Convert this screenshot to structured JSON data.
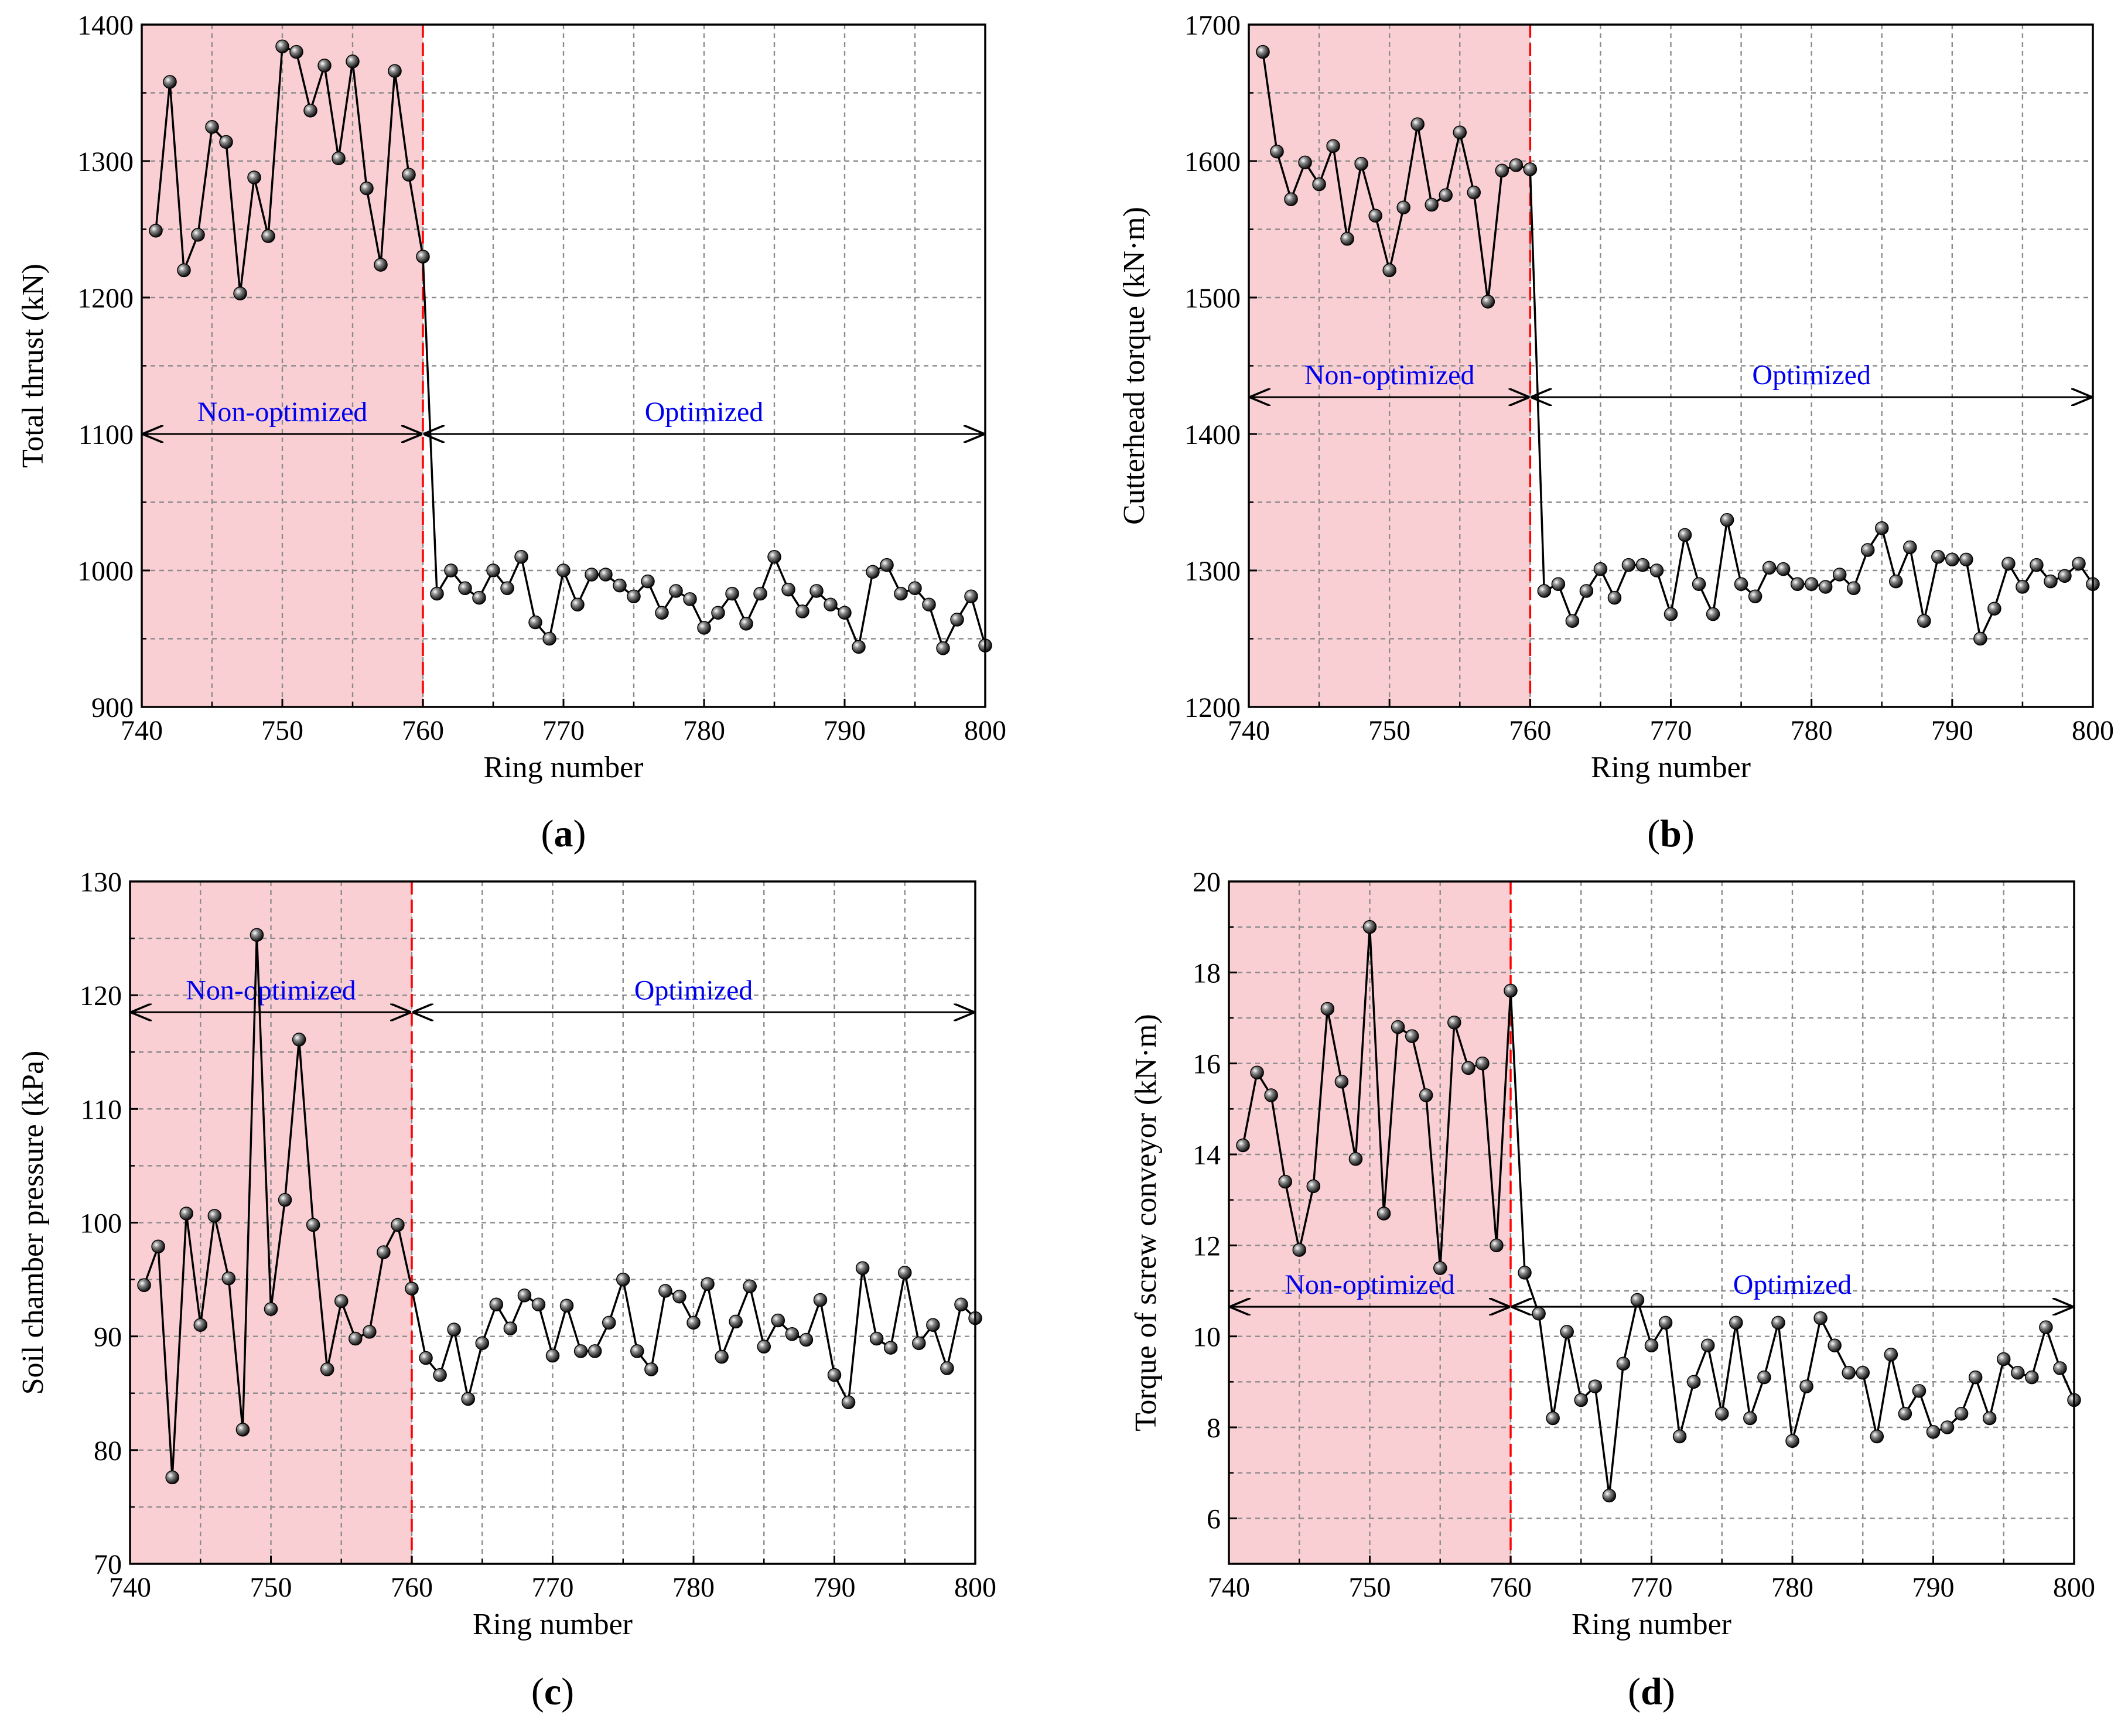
{
  "colors": {
    "shade": "#f9cfd3",
    "divider": "#ff0000",
    "annotation_text": "#0000ee",
    "series": "#000000",
    "grid": "#8c8c8c"
  },
  "chart_data": [
    {
      "type": "line",
      "caption_letter": "a",
      "title": "",
      "xlabel": "Ring number",
      "ylabel": "Total thrust (kN)",
      "xlim": [
        740,
        800
      ],
      "ylim": [
        900,
        1400
      ],
      "xticks": [
        740,
        750,
        760,
        770,
        780,
        790,
        800
      ],
      "yticks": [
        900,
        1000,
        1100,
        1200,
        1300,
        1400
      ],
      "shaded_range": [
        740,
        760
      ],
      "divider_x": 760,
      "region_labels": {
        "non_optimized": "Non-optimized",
        "optimized": "Optimized"
      },
      "annotation_y": 1100,
      "grid": true,
      "series": [
        {
          "name": "Total thrust",
          "x": [
            741,
            742,
            743,
            744,
            745,
            746,
            747,
            748,
            749,
            750,
            751,
            752,
            753,
            754,
            755,
            756,
            757,
            758,
            759,
            760,
            761,
            762,
            763,
            764,
            765,
            766,
            767,
            768,
            769,
            770,
            771,
            772,
            773,
            774,
            775,
            776,
            777,
            778,
            779,
            780,
            781,
            782,
            783,
            784,
            785,
            786,
            787,
            788,
            789,
            790,
            791,
            792,
            793,
            794,
            795,
            796,
            797,
            798,
            799,
            800
          ],
          "values": [
            1249,
            1358,
            1220,
            1246,
            1325,
            1314,
            1203,
            1288,
            1245,
            1384,
            1380,
            1337,
            1370,
            1302,
            1373,
            1280,
            1224,
            1366,
            1290,
            1230,
            983,
            1000,
            987,
            980,
            1000,
            987,
            1010,
            962,
            950,
            1000,
            975,
            997,
            997,
            989,
            981,
            992,
            969,
            985,
            979,
            958,
            969,
            983,
            961,
            983,
            1010,
            986,
            970,
            985,
            975,
            969,
            944,
            999,
            1004,
            983,
            987,
            975,
            943,
            964,
            981,
            945
          ]
        }
      ]
    },
    {
      "type": "line",
      "caption_letter": "b",
      "title": "",
      "xlabel": "Ring number",
      "ylabel": "Cutterhead torque (kN·m)",
      "xlim": [
        740,
        800
      ],
      "ylim": [
        1200,
        1700
      ],
      "xticks": [
        740,
        750,
        760,
        770,
        780,
        790,
        800
      ],
      "yticks": [
        1200,
        1300,
        1400,
        1500,
        1600,
        1700
      ],
      "shaded_range": [
        740,
        760
      ],
      "divider_x": 760,
      "region_labels": {
        "non_optimized": "Non-optimized",
        "optimized": "Optimized"
      },
      "annotation_y": 1427,
      "grid": true,
      "series": [
        {
          "name": "Cutterhead torque",
          "x": [
            741,
            742,
            743,
            744,
            745,
            746,
            747,
            748,
            749,
            750,
            751,
            752,
            753,
            754,
            755,
            756,
            757,
            758,
            759,
            760,
            761,
            762,
            763,
            764,
            765,
            766,
            767,
            768,
            769,
            770,
            771,
            772,
            773,
            774,
            775,
            776,
            777,
            778,
            779,
            780,
            781,
            782,
            783,
            784,
            785,
            786,
            787,
            788,
            789,
            790,
            791,
            792,
            793,
            794,
            795,
            796,
            797,
            798,
            799,
            800
          ],
          "values": [
            1680,
            1607,
            1572,
            1599,
            1583,
            1611,
            1543,
            1598,
            1560,
            1520,
            1566,
            1627,
            1568,
            1575,
            1621,
            1577,
            1497,
            1593,
            1597,
            1594,
            1285,
            1290,
            1263,
            1285,
            1301,
            1280,
            1304,
            1304,
            1300,
            1268,
            1326,
            1290,
            1268,
            1337,
            1290,
            1281,
            1302,
            1301,
            1290,
            1290,
            1288,
            1297,
            1287,
            1315,
            1331,
            1292,
            1317,
            1263,
            1310,
            1308,
            1308,
            1250,
            1272,
            1305,
            1288,
            1304,
            1292,
            1296,
            1305,
            1290
          ]
        }
      ]
    },
    {
      "type": "line",
      "caption_letter": "c",
      "title": "",
      "xlabel": "Ring number",
      "ylabel": "Soil chamber pressure (kPa)",
      "xlim": [
        740,
        800
      ],
      "ylim": [
        70,
        130
      ],
      "xticks": [
        740,
        750,
        760,
        770,
        780,
        790,
        800
      ],
      "yticks": [
        70,
        80,
        90,
        100,
        110,
        120,
        130
      ],
      "shaded_range": [
        740,
        760
      ],
      "divider_x": 760,
      "region_labels": {
        "non_optimized": "Non-optimized",
        "optimized": "Optimized"
      },
      "annotation_y": 118.5,
      "grid": true,
      "series": [
        {
          "name": "Soil chamber pressure",
          "x": [
            741,
            742,
            743,
            744,
            745,
            746,
            747,
            748,
            749,
            750,
            751,
            752,
            753,
            754,
            755,
            756,
            757,
            758,
            759,
            760,
            761,
            762,
            763,
            764,
            765,
            766,
            767,
            768,
            769,
            770,
            771,
            772,
            773,
            774,
            775,
            776,
            777,
            778,
            779,
            780,
            781,
            782,
            783,
            784,
            785,
            786,
            787,
            788,
            789,
            790,
            791,
            792,
            793,
            794,
            795,
            796,
            797,
            798,
            799,
            800
          ],
          "values": [
            94.5,
            97.9,
            77.6,
            100.8,
            91.0,
            100.6,
            95.1,
            81.8,
            125.3,
            92.4,
            102.0,
            116.1,
            99.8,
            87.1,
            93.1,
            89.8,
            90.4,
            97.4,
            99.8,
            94.2,
            88.1,
            86.6,
            90.6,
            84.5,
            89.4,
            92.8,
            90.7,
            93.6,
            92.8,
            88.3,
            92.7,
            88.7,
            88.7,
            91.2,
            95.0,
            88.7,
            87.1,
            94.0,
            93.5,
            91.2,
            94.6,
            88.2,
            91.3,
            94.4,
            89.1,
            91.4,
            90.2,
            89.7,
            93.2,
            86.6,
            84.2,
            96.0,
            89.8,
            89.0,
            95.6,
            89.4,
            91.0,
            87.2,
            92.8,
            91.6
          ]
        }
      ]
    },
    {
      "type": "line",
      "caption_letter": "d",
      "title": "",
      "xlabel": "Ring number",
      "ylabel": "Torque of screw conveyor (kN·m)",
      "xlim": [
        740,
        800
      ],
      "ylim": [
        5,
        20
      ],
      "xticks": [
        740,
        750,
        760,
        770,
        780,
        790,
        800
      ],
      "yticks": [
        6,
        8,
        10,
        12,
        14,
        16,
        18,
        20
      ],
      "shaded_range": [
        740,
        760
      ],
      "divider_x": 760,
      "region_labels": {
        "non_optimized": "Non-optimized",
        "optimized": "Optimized"
      },
      "annotation_y": 10.65,
      "grid": true,
      "series": [
        {
          "name": "Torque of screw conveyor",
          "x": [
            741,
            742,
            743,
            744,
            745,
            746,
            747,
            748,
            749,
            750,
            751,
            752,
            753,
            754,
            755,
            756,
            757,
            758,
            759,
            760,
            761,
            762,
            763,
            764,
            765,
            766,
            767,
            768,
            769,
            770,
            771,
            772,
            773,
            774,
            775,
            776,
            777,
            778,
            779,
            780,
            781,
            782,
            783,
            784,
            785,
            786,
            787,
            788,
            789,
            790,
            791,
            792,
            793,
            794,
            795,
            796,
            797,
            798,
            799,
            800
          ],
          "values": [
            14.2,
            15.8,
            15.3,
            13.4,
            11.9,
            13.3,
            17.2,
            15.6,
            13.9,
            19.0,
            12.7,
            16.8,
            16.6,
            15.3,
            11.5,
            16.9,
            15.9,
            16.0,
            12.0,
            17.6,
            11.4,
            10.5,
            8.2,
            10.1,
            8.6,
            8.9,
            6.5,
            9.4,
            10.8,
            9.8,
            10.3,
            7.8,
            9.0,
            9.8,
            8.3,
            10.3,
            8.2,
            9.1,
            10.3,
            7.7,
            8.9,
            10.4,
            9.8,
            9.2,
            9.2,
            7.8,
            9.6,
            8.3,
            8.8,
            7.9,
            8.0,
            8.3,
            9.1,
            8.2,
            9.5,
            9.2,
            9.1,
            10.2,
            9.3,
            8.6
          ]
        }
      ]
    }
  ]
}
